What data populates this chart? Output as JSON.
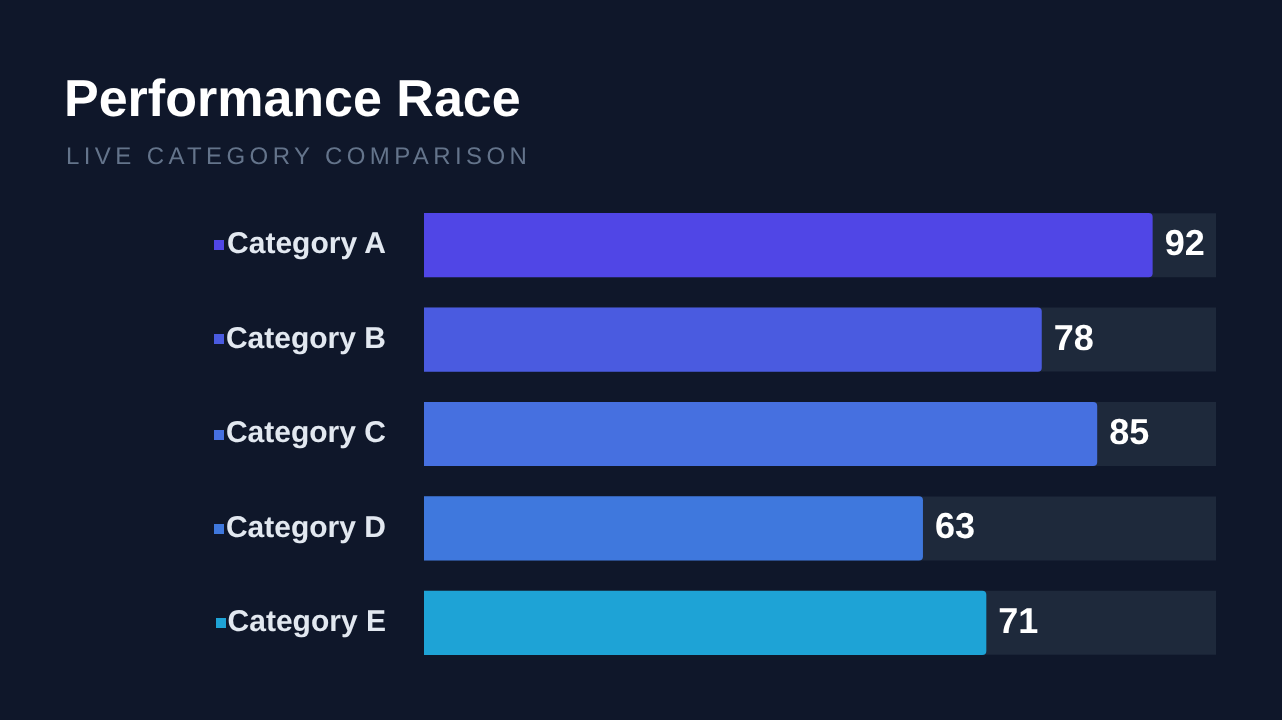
{
  "chart_data": {
    "type": "bar",
    "orientation": "horizontal",
    "title": "Performance Race",
    "subtitle": "LIVE CATEGORY COMPARISON",
    "categories": [
      "Category A",
      "Category B",
      "Category C",
      "Category D",
      "Category E"
    ],
    "values": [
      92,
      78,
      85,
      63,
      71
    ],
    "colors": [
      "#5046e6",
      "#4a5be0",
      "#4670e0",
      "#3f78dd",
      "#1ea3d6"
    ],
    "xlim": [
      0,
      100
    ],
    "tick_labels": "y",
    "data_labels": true,
    "legend": false
  }
}
